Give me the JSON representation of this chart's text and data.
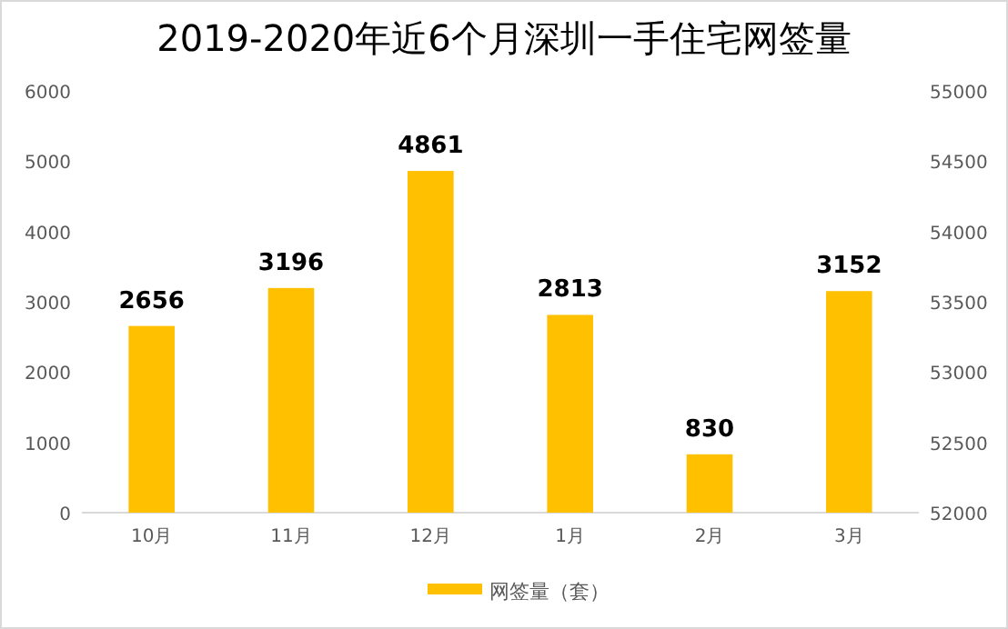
{
  "chart_data": {
    "type": "bar",
    "title": "2019-2020年近6个月深圳一手住宅网签量",
    "categories": [
      "10月",
      "11月",
      "12月",
      "1月",
      "2月",
      "3月"
    ],
    "series": [
      {
        "name": "网签量（套）",
        "color": "#ffc000",
        "values": [
          2656,
          3196,
          4861,
          2813,
          830,
          3152
        ]
      }
    ],
    "ylim": [
      0,
      6000
    ],
    "yticks": [
      0,
      1000,
      2000,
      3000,
      4000,
      5000,
      6000
    ],
    "y2lim": [
      52000,
      55000
    ],
    "y2ticks": [
      52000,
      52500,
      53000,
      53500,
      54000,
      54500,
      55000
    ],
    "data_labels": true,
    "legend": "bottom"
  }
}
